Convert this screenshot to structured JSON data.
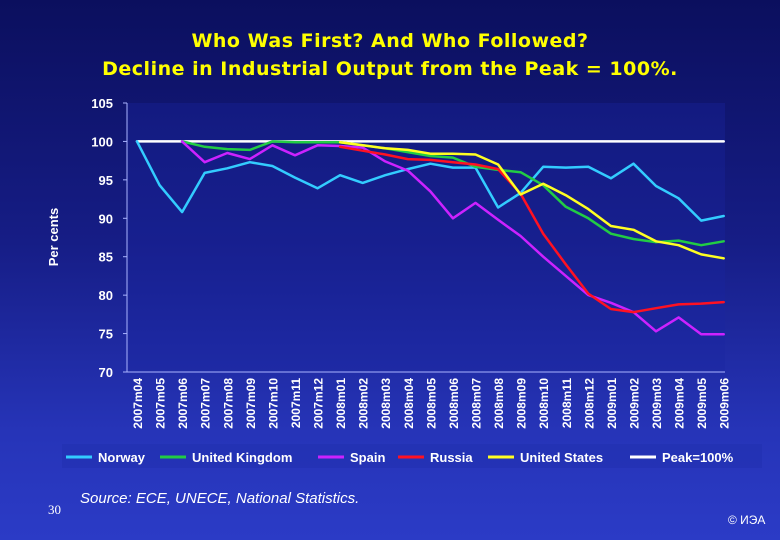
{
  "title_line1": "Who Was First? And Who Followed?",
  "title_line2": "Decline in Industrial Output from the Peak = 100%.",
  "source": "Source: ECE, UNECE, National Statistics.",
  "slide_number": "30",
  "copyright": "© ИЭА",
  "chart_data": {
    "type": "line",
    "ylabel": "Per cents",
    "xlabel": "",
    "ylim": [
      70,
      105
    ],
    "yticks": [
      70,
      75,
      80,
      85,
      90,
      95,
      100,
      105
    ],
    "grid": false,
    "legend_position": "bottom",
    "categories": [
      "2007m04",
      "2007m05",
      "2007m06",
      "2007m07",
      "2007m08",
      "2007m09",
      "2007m10",
      "2007m11",
      "2007m12",
      "2008m01",
      "2008m02",
      "2008m03",
      "2008m04",
      "2008m05",
      "2008m06",
      "2008m07",
      "2008m08",
      "2008m09",
      "2008m10",
      "2008m11",
      "2008m12",
      "2009m01",
      "2009m02",
      "2009m03",
      "2009m04",
      "2009m05",
      "2009m06"
    ],
    "series": [
      {
        "name": "Norway",
        "color": "#33ccff",
        "values": [
          100.0,
          94.3,
          90.8,
          95.9,
          96.5,
          97.3,
          96.8,
          95.3,
          93.9,
          95.6,
          94.6,
          95.6,
          96.4,
          97.1,
          96.6,
          96.6,
          91.4,
          93.3,
          96.7,
          96.6,
          96.7,
          95.2,
          97.1,
          94.2,
          92.6,
          89.7,
          90.3
        ]
      },
      {
        "name": "United Kingdom",
        "color": "#22cc44",
        "values": [
          null,
          null,
          100.0,
          99.3,
          99.0,
          98.9,
          100.0,
          99.9,
          99.9,
          99.9,
          99.5,
          99.1,
          98.6,
          98.1,
          97.9,
          96.7,
          96.3,
          96.0,
          94.3,
          91.5,
          90.0,
          88.0,
          87.3,
          86.9,
          87.1,
          86.5,
          87.0
        ]
      },
      {
        "name": "Spain",
        "color": "#cc22ff",
        "values": [
          null,
          null,
          100.0,
          97.3,
          98.5,
          97.7,
          99.5,
          98.2,
          99.5,
          99.4,
          99.2,
          97.4,
          96.2,
          93.5,
          90.0,
          92.0,
          89.8,
          87.7,
          85.0,
          82.5,
          80.0,
          79.0,
          77.8,
          75.3,
          77.1,
          74.9,
          74.9
        ]
      },
      {
        "name": "Russia",
        "color": "#ff1122",
        "values": [
          null,
          null,
          null,
          null,
          null,
          null,
          null,
          null,
          null,
          99.3,
          98.8,
          98.3,
          97.7,
          97.6,
          97.3,
          97.0,
          96.4,
          93.2,
          88.0,
          84.0,
          80.2,
          78.2,
          77.8,
          78.3,
          78.8,
          78.9,
          79.1
        ]
      },
      {
        "name": "United States",
        "color": "#ffff22",
        "values": [
          null,
          null,
          null,
          null,
          null,
          null,
          null,
          null,
          null,
          99.9,
          99.5,
          99.1,
          98.9,
          98.4,
          98.4,
          98.3,
          97.0,
          93.1,
          94.5,
          93.0,
          91.2,
          89.0,
          88.5,
          87.0,
          86.5,
          85.3,
          84.8
        ]
      },
      {
        "name": "Peak=100%",
        "color": "#ffffff",
        "values": [
          100,
          100,
          100,
          100,
          100,
          100,
          100,
          100,
          100,
          100,
          100,
          100,
          100,
          100,
          100,
          100,
          100,
          100,
          100,
          100,
          100,
          100,
          100,
          100,
          100,
          100,
          100
        ]
      }
    ]
  }
}
